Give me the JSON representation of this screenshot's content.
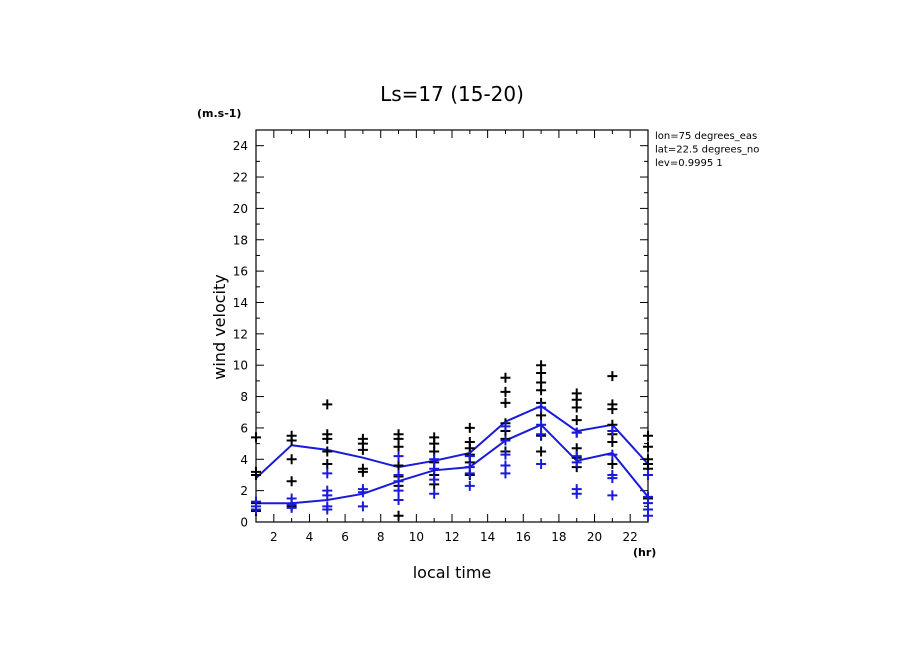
{
  "chart_data": {
    "type": "scatter",
    "title": "Ls=17 (15-20)",
    "xlabel": "local time",
    "ylabel": "wind velocity",
    "x_unit": "(hr)",
    "y_unit": "(m.s-1)",
    "xlim": [
      1,
      23
    ],
    "ylim": [
      0,
      25
    ],
    "x_ticks": [
      2,
      4,
      6,
      8,
      10,
      12,
      14,
      16,
      18,
      20,
      22
    ],
    "y_ticks": [
      0,
      2,
      4,
      6,
      8,
      10,
      12,
      14,
      16,
      18,
      20,
      22,
      24
    ],
    "annotations": [
      "lon=75 degrees_eas",
      "lat=22.5 degrees_no",
      "lev=0.9995 1"
    ],
    "grid": false,
    "series": [
      {
        "color": "#1a1ad9",
        "kind": "line",
        "x": [
          1,
          3,
          5,
          7,
          9,
          11,
          13,
          15,
          17,
          19,
          21,
          23
        ],
        "values": [
          2.8,
          4.9,
          4.6,
          4.1,
          3.5,
          3.9,
          4.4,
          6.4,
          7.4,
          5.8,
          6.2,
          3.7
        ]
      },
      {
        "color": "#1a1ad9",
        "kind": "line",
        "x": [
          1,
          3,
          5,
          7,
          9,
          11,
          13,
          15,
          17,
          19,
          21,
          23
        ],
        "values": [
          1.2,
          1.2,
          1.4,
          1.8,
          2.6,
          3.3,
          3.5,
          5.2,
          6.2,
          3.9,
          4.4,
          1.6
        ]
      },
      {
        "color": "#000000",
        "kind": "points",
        "points": [
          [
            1,
            0.7
          ],
          [
            1,
            1.2
          ],
          [
            1,
            3.0
          ],
          [
            1,
            3.2
          ],
          [
            1,
            5.4
          ],
          [
            3,
            1.0
          ],
          [
            3,
            2.6
          ],
          [
            3,
            4.0
          ],
          [
            3,
            5.2
          ],
          [
            3,
            5.5
          ],
          [
            5,
            3.7
          ],
          [
            5,
            4.5
          ],
          [
            5,
            5.3
          ],
          [
            5,
            5.6
          ],
          [
            5,
            7.5
          ],
          [
            7,
            3.2
          ],
          [
            7,
            3.4
          ],
          [
            7,
            4.6
          ],
          [
            7,
            5.0
          ],
          [
            7,
            5.3
          ],
          [
            9,
            0.4
          ],
          [
            9,
            2.3
          ],
          [
            9,
            2.9
          ],
          [
            9,
            3.6
          ],
          [
            9,
            4.8
          ],
          [
            9,
            5.3
          ],
          [
            9,
            5.6
          ],
          [
            11,
            2.4
          ],
          [
            11,
            3.0
          ],
          [
            11,
            3.8
          ],
          [
            11,
            4.5
          ],
          [
            11,
            5.0
          ],
          [
            11,
            5.4
          ],
          [
            13,
            3.0
          ],
          [
            13,
            3.8
          ],
          [
            13,
            4.3
          ],
          [
            13,
            4.7
          ],
          [
            13,
            5.1
          ],
          [
            13,
            6.0
          ],
          [
            15,
            4.5
          ],
          [
            15,
            5.3
          ],
          [
            15,
            5.8
          ],
          [
            15,
            6.3
          ],
          [
            15,
            7.6
          ],
          [
            15,
            8.3
          ],
          [
            15,
            9.2
          ],
          [
            17,
            4.5
          ],
          [
            17,
            5.5
          ],
          [
            17,
            6.8
          ],
          [
            17,
            7.6
          ],
          [
            17,
            8.4
          ],
          [
            17,
            8.9
          ],
          [
            17,
            9.5
          ],
          [
            17,
            10.0
          ],
          [
            19,
            3.5
          ],
          [
            19,
            4.1
          ],
          [
            19,
            4.7
          ],
          [
            19,
            5.7
          ],
          [
            19,
            6.5
          ],
          [
            19,
            7.3
          ],
          [
            19,
            7.8
          ],
          [
            19,
            8.2
          ],
          [
            21,
            3.7
          ],
          [
            21,
            5.1
          ],
          [
            21,
            5.6
          ],
          [
            21,
            6.2
          ],
          [
            21,
            7.2
          ],
          [
            21,
            7.5
          ],
          [
            21,
            9.3
          ],
          [
            23,
            1.5
          ],
          [
            23,
            3.4
          ],
          [
            23,
            3.7
          ],
          [
            23,
            4.0
          ],
          [
            23,
            4.8
          ],
          [
            23,
            5.5
          ]
        ]
      },
      {
        "color": "#1a1ad9",
        "kind": "points",
        "points": [
          [
            1,
            0.8
          ],
          [
            1,
            1.0
          ],
          [
            1,
            1.3
          ],
          [
            3,
            0.9
          ],
          [
            3,
            1.1
          ],
          [
            3,
            1.5
          ],
          [
            5,
            0.8
          ],
          [
            5,
            1.0
          ],
          [
            5,
            1.7
          ],
          [
            5,
            2.0
          ],
          [
            5,
            3.1
          ],
          [
            7,
            1.0
          ],
          [
            7,
            1.9
          ],
          [
            7,
            2.1
          ],
          [
            9,
            1.4
          ],
          [
            9,
            2.0
          ],
          [
            9,
            2.6
          ],
          [
            9,
            3.0
          ],
          [
            9,
            4.2
          ],
          [
            11,
            1.8
          ],
          [
            11,
            2.7
          ],
          [
            11,
            3.4
          ],
          [
            11,
            4.0
          ],
          [
            13,
            2.3
          ],
          [
            13,
            3.1
          ],
          [
            13,
            3.5
          ],
          [
            13,
            4.2
          ],
          [
            15,
            3.1
          ],
          [
            15,
            3.6
          ],
          [
            15,
            4.3
          ],
          [
            15,
            5.2
          ],
          [
            15,
            6.1
          ],
          [
            17,
            3.7
          ],
          [
            17,
            5.6
          ],
          [
            17,
            6.2
          ],
          [
            17,
            7.3
          ],
          [
            19,
            1.8
          ],
          [
            19,
            2.1
          ],
          [
            19,
            3.8
          ],
          [
            19,
            4.2
          ],
          [
            19,
            5.7
          ],
          [
            21,
            1.7
          ],
          [
            21,
            2.8
          ],
          [
            21,
            3.0
          ],
          [
            21,
            4.3
          ],
          [
            21,
            5.8
          ],
          [
            23,
            0.4
          ],
          [
            23,
            0.8
          ],
          [
            23,
            1.2
          ],
          [
            23,
            1.6
          ],
          [
            23,
            3.0
          ]
        ]
      }
    ]
  }
}
